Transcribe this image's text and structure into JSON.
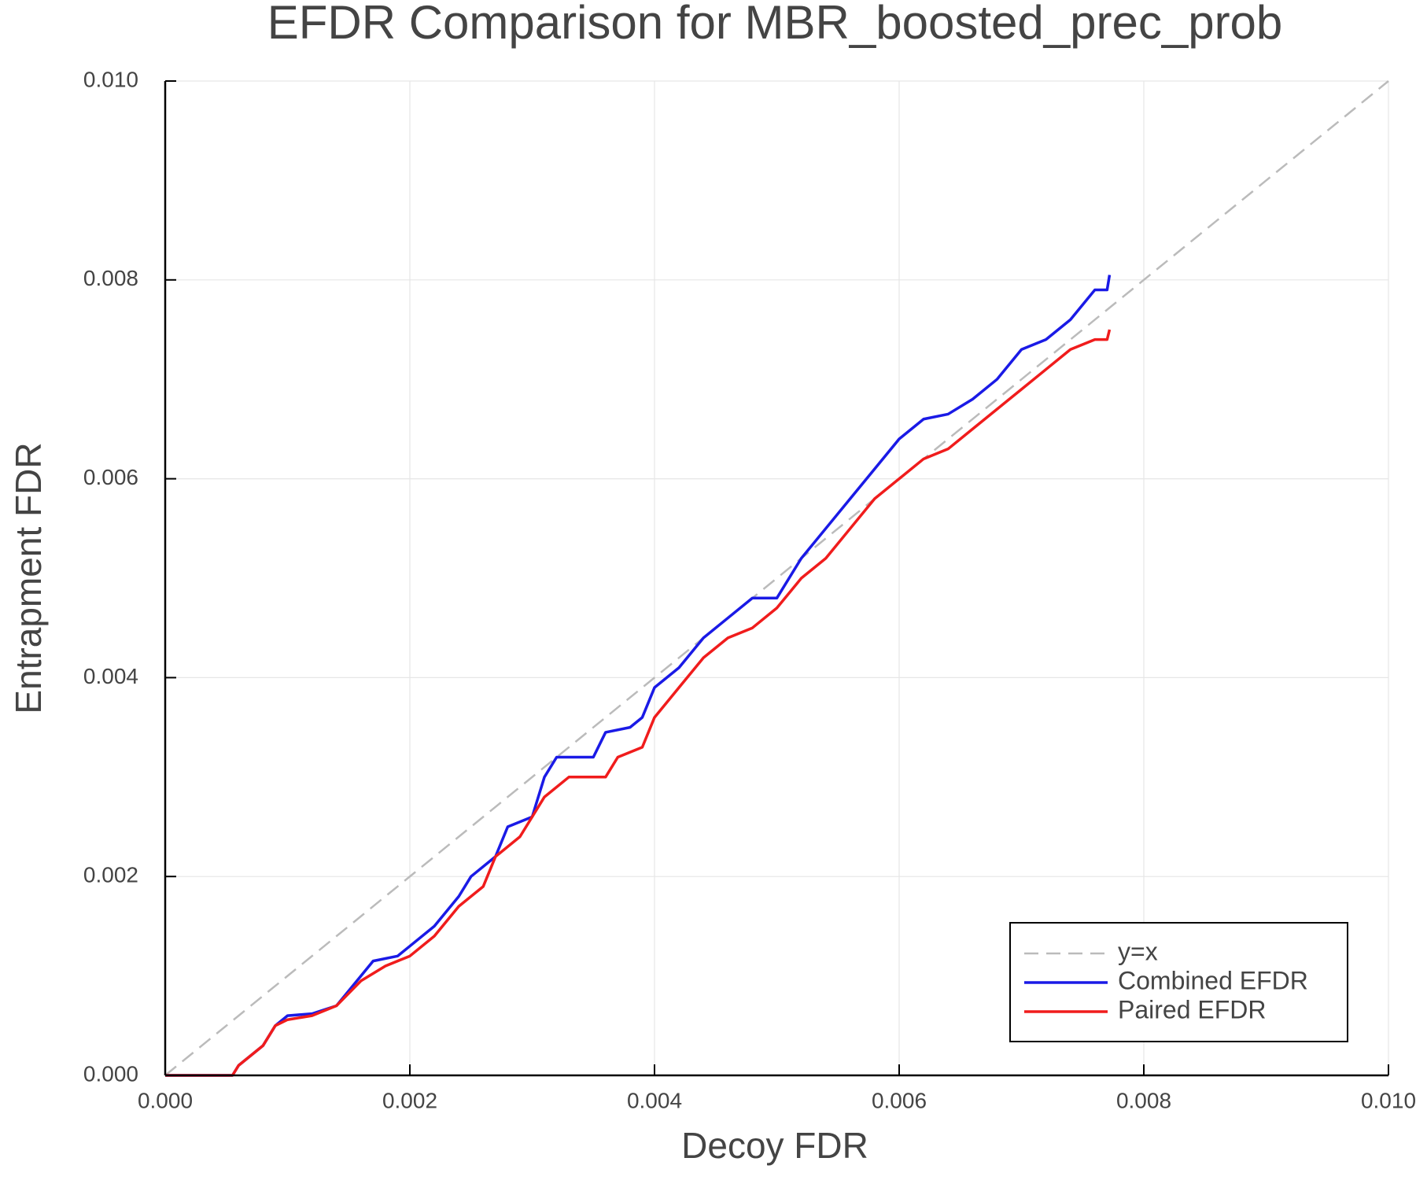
{
  "chart_data": {
    "type": "line",
    "title": "EFDR Comparison for MBR_boosted_prec_prob",
    "x_label": "Decoy FDR",
    "y_label": "Entrapment FDR",
    "xlim": [
      0,
      0.01
    ],
    "ylim": [
      0,
      0.01
    ],
    "xticks": [
      {
        "value": 0,
        "label": "0.000"
      },
      {
        "value": 0.002,
        "label": "0.002"
      },
      {
        "value": 0.004,
        "label": "0.004"
      },
      {
        "value": 0.006,
        "label": "0.006"
      },
      {
        "value": 0.008,
        "label": "0.008"
      },
      {
        "value": 0.01,
        "label": "0.010"
      }
    ],
    "yticks": [
      {
        "value": 0,
        "label": "0.000"
      },
      {
        "value": 0.002,
        "label": "0.002"
      },
      {
        "value": 0.004,
        "label": "0.004"
      },
      {
        "value": 0.006,
        "label": "0.006"
      },
      {
        "value": 0.008,
        "label": "0.008"
      },
      {
        "value": 0.01,
        "label": "0.010"
      }
    ],
    "grid": true,
    "legend": "bottom-right",
    "series": [
      {
        "name": "y=x",
        "color": "#bbbbbb",
        "dash": true,
        "x": [
          0,
          0.01
        ],
        "values": [
          0,
          0.01
        ]
      },
      {
        "name": "Combined EFDR",
        "color": "#1a1ae6",
        "dash": false,
        "x": [
          0,
          0.00055,
          0.0006,
          0.0008,
          0.0009,
          0.001,
          0.0012,
          0.0014,
          0.0016,
          0.0017,
          0.0019,
          0.002,
          0.0022,
          0.0024,
          0.0025,
          0.0027,
          0.0028,
          0.003,
          0.0031,
          0.0032,
          0.0035,
          0.0036,
          0.0038,
          0.0039,
          0.004,
          0.0042,
          0.0044,
          0.0046,
          0.0048,
          0.005,
          0.0052,
          0.0054,
          0.0056,
          0.0058,
          0.006,
          0.0062,
          0.0064,
          0.0066,
          0.0068,
          0.007,
          0.0072,
          0.0074,
          0.0076,
          0.0077,
          0.00772
        ],
        "values": [
          0,
          0,
          0.0001,
          0.0003,
          0.0005,
          0.0006,
          0.00062,
          0.0007,
          0.001,
          0.00115,
          0.0012,
          0.0013,
          0.0015,
          0.0018,
          0.002,
          0.0022,
          0.0025,
          0.0026,
          0.003,
          0.0032,
          0.0032,
          0.00345,
          0.0035,
          0.0036,
          0.0039,
          0.0041,
          0.0044,
          0.0046,
          0.0048,
          0.0048,
          0.0052,
          0.0055,
          0.0058,
          0.0061,
          0.0064,
          0.0066,
          0.00665,
          0.0068,
          0.007,
          0.0073,
          0.0074,
          0.0076,
          0.0079,
          0.0079,
          0.00805
        ]
      },
      {
        "name": "Paired EFDR",
        "color": "#f01c1c",
        "dash": false,
        "x": [
          0,
          0.00055,
          0.0006,
          0.0008,
          0.0009,
          0.001,
          0.0012,
          0.0014,
          0.0016,
          0.0018,
          0.002,
          0.0022,
          0.0024,
          0.0026,
          0.0027,
          0.0029,
          0.003,
          0.0031,
          0.0033,
          0.0036,
          0.0037,
          0.0039,
          0.004,
          0.0042,
          0.0044,
          0.0046,
          0.0048,
          0.005,
          0.0052,
          0.0054,
          0.0056,
          0.0058,
          0.006,
          0.0062,
          0.0064,
          0.0066,
          0.0068,
          0.007,
          0.0072,
          0.0074,
          0.0076,
          0.0077,
          0.00772
        ],
        "values": [
          0,
          0,
          0.0001,
          0.0003,
          0.0005,
          0.00056,
          0.0006,
          0.0007,
          0.00095,
          0.0011,
          0.0012,
          0.0014,
          0.0017,
          0.0019,
          0.0022,
          0.0024,
          0.0026,
          0.0028,
          0.003,
          0.003,
          0.0032,
          0.0033,
          0.0036,
          0.0039,
          0.0042,
          0.0044,
          0.0045,
          0.0047,
          0.005,
          0.0052,
          0.0055,
          0.0058,
          0.006,
          0.0062,
          0.0063,
          0.0065,
          0.0067,
          0.0069,
          0.0071,
          0.0073,
          0.0074,
          0.0074,
          0.0075
        ]
      }
    ]
  }
}
